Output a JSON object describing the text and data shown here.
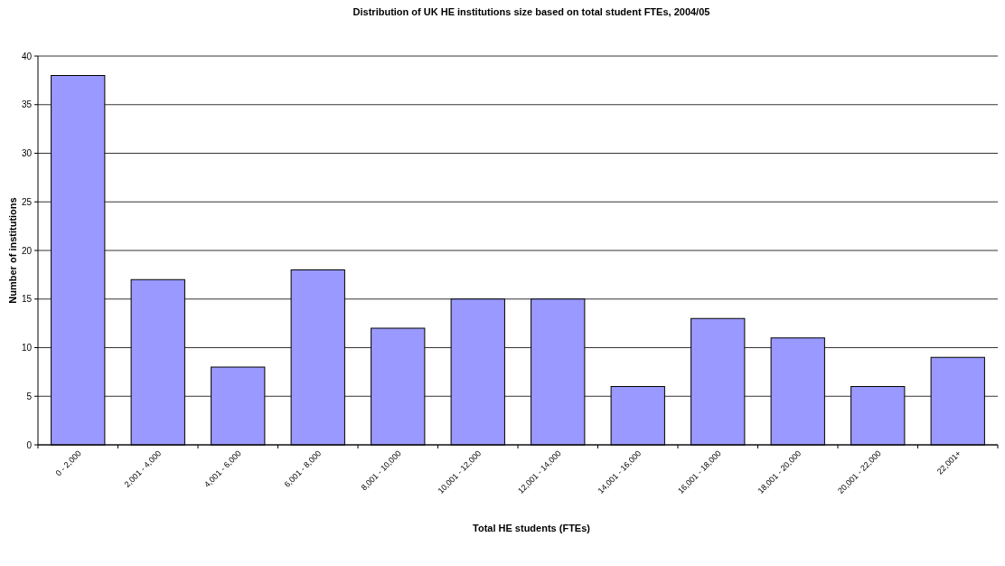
{
  "chart_data": {
    "type": "bar",
    "title": "Distribution of UK HE institutions size based on total student FTEs, 2004/05",
    "xlabel": "Total HE students (FTEs)",
    "ylabel": "Number of institutions",
    "categories": [
      "0 - 2,000",
      "2,001 - 4,000",
      "4,001 - 6,000",
      "6,001 - 8,000",
      "8,001 - 10,000",
      "10,001 - 12,000",
      "12,001 - 14,000",
      "14,001 - 16,000",
      "16,001 - 18,000",
      "18,001 - 20,000",
      "20,001 - 22,000",
      "22,001+"
    ],
    "values": [
      38,
      17,
      8,
      18,
      12,
      15,
      15,
      6,
      13,
      11,
      6,
      9
    ],
    "color": "#9999ff",
    "ylim": [
      0,
      40
    ],
    "yticks": [
      0,
      5,
      10,
      15,
      20,
      25,
      30,
      35,
      40
    ],
    "grid": "y"
  }
}
